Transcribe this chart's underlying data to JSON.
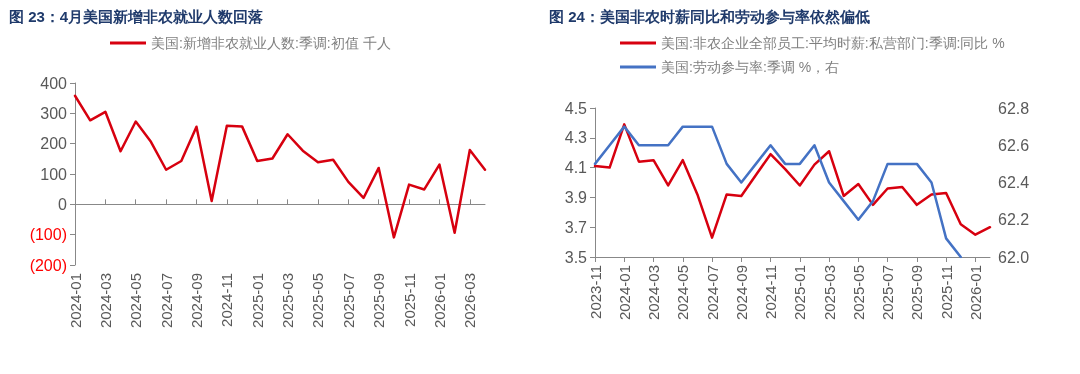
{
  "chart_data": [
    {
      "type": "line",
      "title": "图 23：4月美国新增非农就业人数回落",
      "legend": "top",
      "marker": "none",
      "categories": [
        "2024-01",
        null,
        "2024-03",
        null,
        "2024-05",
        null,
        "2024-07",
        null,
        "2024-09",
        null,
        "2024-11",
        null,
        "2025-01",
        null,
        "2025-03",
        null,
        "2025-05",
        null,
        "2025-07",
        null,
        "2025-09",
        null,
        "2025-11",
        null,
        "2026-01",
        null,
        "2026-03",
        null
      ],
      "ylim": [
        -200,
        400
      ],
      "yticks": [
        {
          "value": -200,
          "label": "(200)"
        },
        {
          "value": -100,
          "label": "(100)"
        },
        0,
        100,
        200,
        300,
        400
      ],
      "series": [
        {
          "name": "美国:新增非农就业人数:季调:初值 千人",
          "color": "#d7000f",
          "values": [
            358,
            277,
            305,
            175,
            273,
            206,
            114,
            143,
            256,
            11,
            259,
            257,
            143,
            151,
            231,
            177,
            139,
            147,
            74,
            21,
            120,
            -109,
            65,
            49,
            131,
            -94,
            179,
            114
          ]
        }
      ]
    },
    {
      "type": "line",
      "title": "图 24：美国非农时薪同比和劳动参与率依然偏低",
      "legend": "top",
      "marker": "none",
      "categories": [
        "2023-11",
        null,
        "2024-01",
        null,
        "2024-03",
        null,
        "2024-05",
        null,
        "2024-07",
        null,
        "2024-09",
        null,
        "2024-11",
        null,
        "2025-01",
        null,
        "2025-03",
        null,
        "2025-05",
        null,
        "2025-07",
        null,
        "2025-09",
        null,
        "2025-11",
        null,
        "2026-01",
        null
      ],
      "ylim": [
        3.5,
        4.5
      ],
      "yticks": [
        3.5,
        3.7,
        3.9,
        4.1,
        4.3,
        4.5
      ],
      "y2lim": [
        62.0,
        62.8
      ],
      "y2ticks": [
        {
          "value": 62.0,
          "label": "62.0"
        },
        62.2,
        62.4,
        62.6,
        62.8
      ],
      "series": [
        {
          "name": "美国:非农企业全部员工:平均时薪:私营部门:季调:同比 %",
          "color": "#d7000f",
          "values": [
            4.11,
            4.1,
            4.39,
            4.14,
            4.15,
            3.98,
            4.15,
            3.92,
            3.63,
            3.92,
            3.91,
            4.05,
            4.19,
            4.09,
            3.98,
            4.12,
            4.21,
            3.91,
            3.99,
            3.85,
            3.96,
            3.97,
            3.85,
            3.92,
            3.93,
            3.72,
            3.65,
            3.7
          ]
        },
        {
          "name": "美国:劳动参与率:季调 %，右",
          "color": "#4472c4",
          "axis": "y2",
          "values": [
            62.5,
            62.6,
            62.7,
            62.6,
            62.6,
            62.6,
            62.7,
            62.7,
            62.7,
            62.5,
            62.4,
            62.5,
            62.6,
            62.5,
            62.5,
            62.6,
            62.4,
            62.3,
            62.2,
            62.3,
            62.5,
            62.5,
            62.5,
            62.4,
            62.1,
            62.0,
            null,
            null
          ]
        }
      ]
    }
  ]
}
